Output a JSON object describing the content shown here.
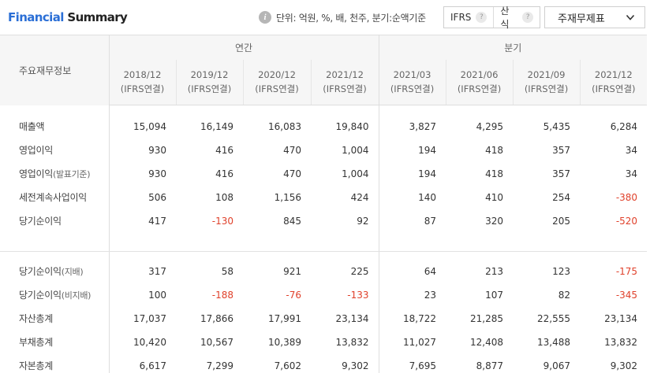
{
  "header": {
    "title_part1": "Financial",
    "title_part2": " Summary",
    "info_icon": "info-icon",
    "unit_text": "단위: 억원, %, 배, 천주, 분기:순액기준",
    "tabs": [
      {
        "label": "IFRS",
        "help": "?"
      },
      {
        "label": "산식",
        "help": "?"
      }
    ],
    "select_value": "주재무제표"
  },
  "table": {
    "stub_header": "주요재무정보",
    "group_annual": "연간",
    "group_quarter": "분기",
    "columns": [
      {
        "date": "2018/12",
        "basis": "(IFRS연결)"
      },
      {
        "date": "2019/12",
        "basis": "(IFRS연결)"
      },
      {
        "date": "2020/12",
        "basis": "(IFRS연결)"
      },
      {
        "date": "2021/12",
        "basis": "(IFRS연결)"
      },
      {
        "date": "2021/03",
        "basis": "(IFRS연결)"
      },
      {
        "date": "2021/06",
        "basis": "(IFRS연결)"
      },
      {
        "date": "2021/09",
        "basis": "(IFRS연결)"
      },
      {
        "date": "2021/12",
        "basis": "(IFRS연결)"
      }
    ],
    "group1": [
      {
        "label": "매출액",
        "sub": "",
        "values": [
          "15,094",
          "16,149",
          "16,083",
          "19,840",
          "3,827",
          "4,295",
          "5,435",
          "6,284"
        ]
      },
      {
        "label": "영업이익",
        "sub": "",
        "values": [
          "930",
          "416",
          "470",
          "1,004",
          "194",
          "418",
          "357",
          "34"
        ]
      },
      {
        "label": "영업이익",
        "sub": "(발표기준)",
        "values": [
          "930",
          "416",
          "470",
          "1,004",
          "194",
          "418",
          "357",
          "34"
        ]
      },
      {
        "label": "세전계속사업이익",
        "sub": "",
        "values": [
          "506",
          "108",
          "1,156",
          "424",
          "140",
          "410",
          "254",
          "-380"
        ]
      },
      {
        "label": "당기순이익",
        "sub": "",
        "values": [
          "417",
          "-130",
          "845",
          "92",
          "87",
          "320",
          "205",
          "-520"
        ]
      }
    ],
    "group2": [
      {
        "label": "당기순이익",
        "sub": "(지배)",
        "values": [
          "317",
          "58",
          "921",
          "225",
          "64",
          "213",
          "123",
          "-175"
        ]
      },
      {
        "label": "당기순이익",
        "sub": "(비지배)",
        "values": [
          "100",
          "-188",
          "-76",
          "-133",
          "23",
          "107",
          "82",
          "-345"
        ]
      },
      {
        "label": "자산총계",
        "sub": "",
        "values": [
          "17,037",
          "17,866",
          "17,991",
          "23,134",
          "18,722",
          "21,285",
          "22,555",
          "23,134"
        ]
      },
      {
        "label": "부채총계",
        "sub": "",
        "values": [
          "10,420",
          "10,567",
          "10,389",
          "13,832",
          "11,027",
          "12,408",
          "13,488",
          "13,832"
        ]
      },
      {
        "label": "자본총계",
        "sub": "",
        "values": [
          "6,617",
          "7,299",
          "7,602",
          "9,302",
          "7,695",
          "8,877",
          "9,067",
          "9,302"
        ]
      }
    ]
  },
  "colors": {
    "accent": "#2b6fd6",
    "negative": "#e0412b",
    "header_bg": "#f6f6f6"
  }
}
